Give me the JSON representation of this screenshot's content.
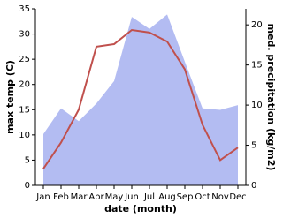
{
  "chart_data": {
    "type": "area-line",
    "x_label": "date (month)",
    "y_label": "max temp (C)",
    "y2_label": "med. precipitation (kg/m2)",
    "categories": [
      "Jan",
      "Feb",
      "Mar",
      "Apr",
      "May",
      "Jun",
      "Jul",
      "Aug",
      "Sep",
      "Oct",
      "Nov",
      "Dec"
    ],
    "series": [
      {
        "name": "max temp",
        "color": "#c0504d",
        "axis": "y",
        "values": [
          3.3,
          8.5,
          15,
          27.5,
          28,
          30.8,
          30.3,
          28.5,
          23,
          12,
          5,
          7.5
        ]
      },
      {
        "name": "med. precipitation",
        "color": "#b3bcf2",
        "axis": "y2",
        "values": [
          6.4,
          9.6,
          8,
          10.2,
          13,
          21,
          19.5,
          21.3,
          15.4,
          9.6,
          9.4,
          10
        ]
      }
    ],
    "ylim": [
      0,
      35
    ],
    "yticks": [
      0,
      5,
      10,
      15,
      20,
      25,
      30,
      35
    ],
    "y2lim": [
      0,
      22
    ],
    "y2ticks": [
      0,
      5,
      10,
      15,
      20
    ]
  }
}
